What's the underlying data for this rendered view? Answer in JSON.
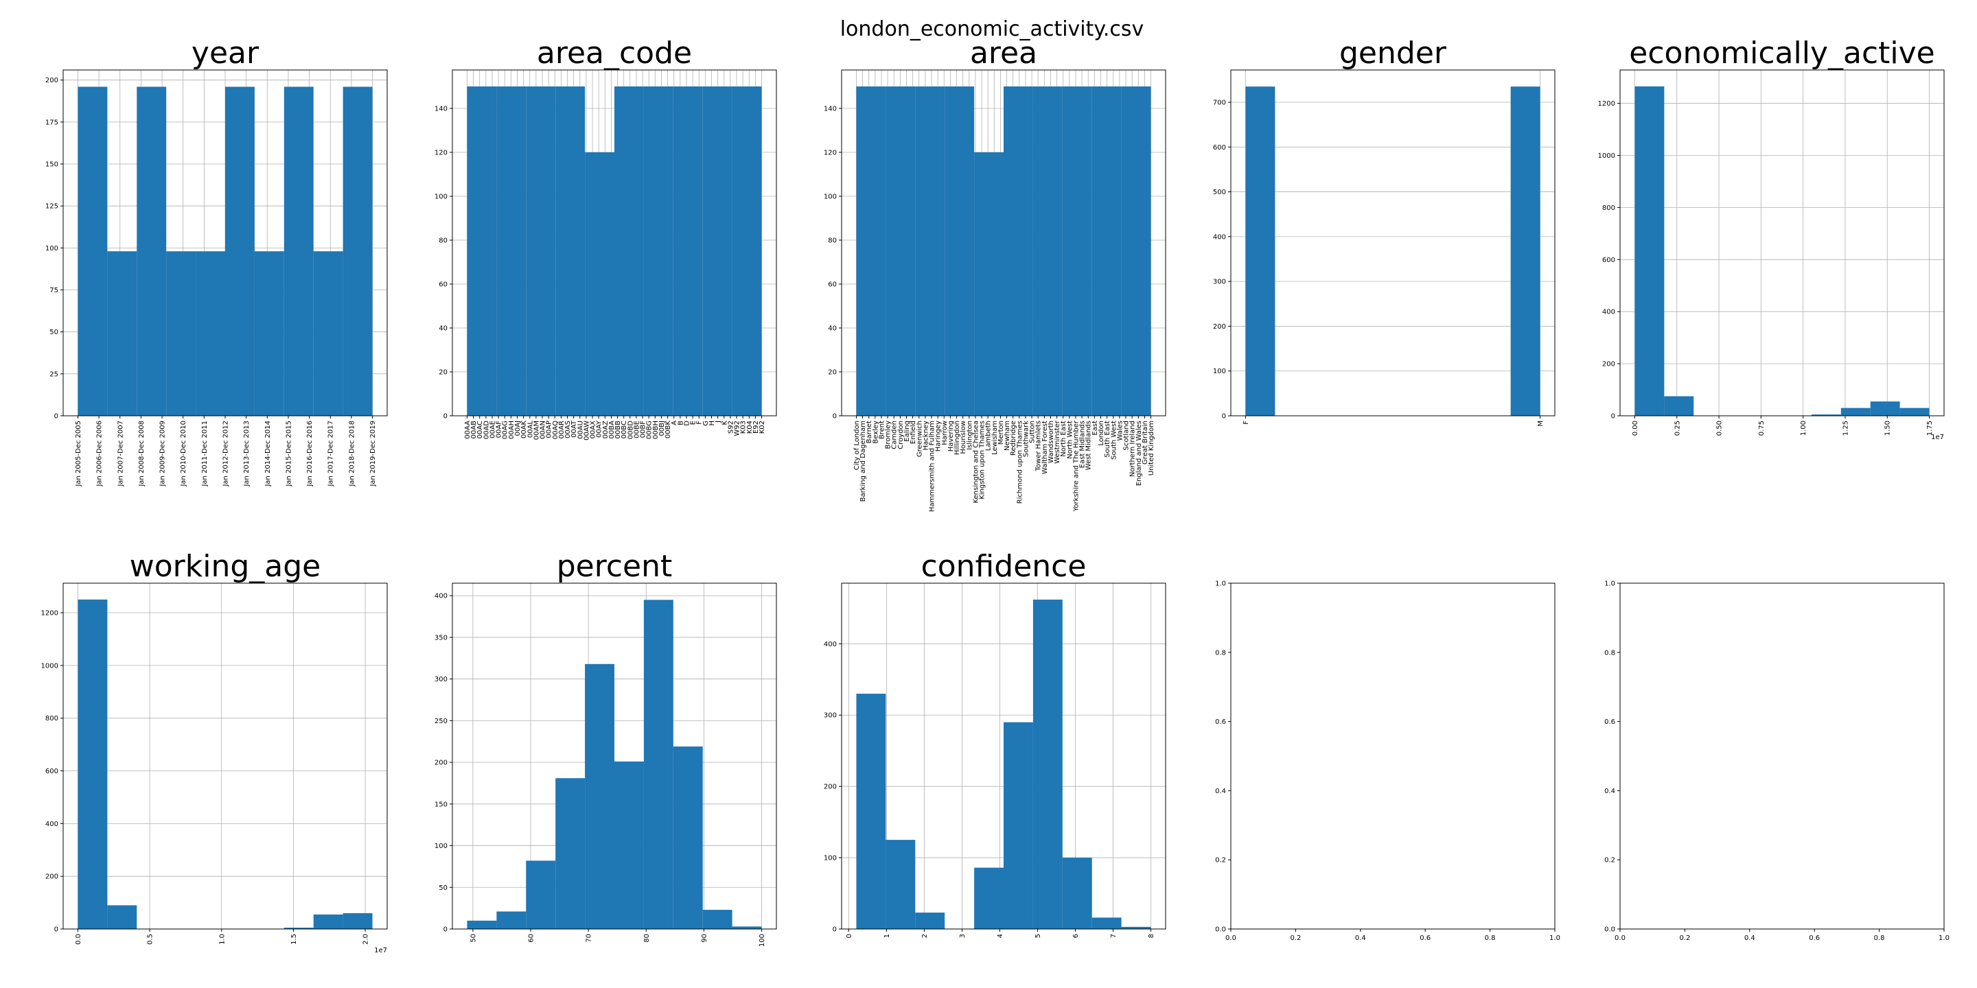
{
  "figure_title": "london_economic_activity.csv",
  "colors": {
    "bar": "#1f77b4",
    "grid": "#b0b0b0",
    "axes": "#000000"
  },
  "chart_data": [
    {
      "type": "bar",
      "title": "year",
      "grid": true,
      "categories": [
        "Jan 2005-Dec 2005",
        "Jan 2006-Dec 2006",
        "Jan 2007-Dec 2007",
        "Jan 2008-Dec 2008",
        "Jan 2009-Dec 2009",
        "Jan 2010-Dec 2010",
        "Jan 2011-Dec 2011",
        "Jan 2012-Dec 2012",
        "Jan 2013-Dec 2013",
        "Jan 2014-Dec 2014",
        "Jan 2015-Dec 2015",
        "Jan 2016-Dec 2016",
        "Jan 2017-Dec 2017",
        "Jan 2018-Dec 2018",
        "Jan 2019-Dec 2019"
      ],
      "bins": [
        {
          "x0": 0,
          "x1": 1.4,
          "count": 196
        },
        {
          "x0": 1.4,
          "x1": 2.8,
          "count": 98
        },
        {
          "x0": 2.8,
          "x1": 4.2,
          "count": 196
        },
        {
          "x0": 4.2,
          "x1": 5.6,
          "count": 98
        },
        {
          "x0": 5.6,
          "x1": 7.0,
          "count": 98
        },
        {
          "x0": 7.0,
          "x1": 8.4,
          "count": 196
        },
        {
          "x0": 8.4,
          "x1": 9.8,
          "count": 98
        },
        {
          "x0": 9.8,
          "x1": 11.2,
          "count": 196
        },
        {
          "x0": 11.2,
          "x1": 12.6,
          "count": 98
        },
        {
          "x0": 12.6,
          "x1": 14.0,
          "count": 196
        }
      ],
      "xlim": [
        -0.7,
        14.7
      ],
      "ylim": [
        0,
        206
      ],
      "yticks": [
        0,
        25,
        50,
        75,
        100,
        125,
        150,
        175,
        200
      ],
      "xtick_positions": [
        0,
        1,
        2,
        3,
        4,
        5,
        6,
        7,
        8,
        9,
        10,
        11,
        12,
        13,
        14
      ],
      "xtick_rotation": 90
    },
    {
      "type": "bar",
      "title": "area_code",
      "grid": true,
      "categories": [
        "00AA",
        "00AB",
        "00AC",
        "00AD",
        "00AE",
        "00AF",
        "00AG",
        "00AH",
        "00AJ",
        "00AK",
        "00AL",
        "00AM",
        "00AN",
        "00AP",
        "00AQ",
        "00AR",
        "00AS",
        "00AT",
        "00AU",
        "00AW",
        "00AX",
        "00AY",
        "00AZ",
        "00BA",
        "00BB",
        "00BC",
        "00BD",
        "00BE",
        "00BF",
        "00BG",
        "00BH",
        "00BJ",
        "00BK",
        "A",
        "B",
        "D",
        "E",
        "F",
        "G",
        "H",
        "J",
        "K",
        "S92",
        "W92",
        "K03",
        "K04",
        "E92",
        "K02"
      ],
      "bins": [
        {
          "x0": 0,
          "x1": 4.7,
          "count": 150
        },
        {
          "x0": 4.7,
          "x1": 9.4,
          "count": 150
        },
        {
          "x0": 9.4,
          "x1": 14.1,
          "count": 150
        },
        {
          "x0": 14.1,
          "x1": 18.8,
          "count": 150
        },
        {
          "x0": 18.8,
          "x1": 23.5,
          "count": 120
        },
        {
          "x0": 23.5,
          "x1": 28.2,
          "count": 150
        },
        {
          "x0": 28.2,
          "x1": 32.9,
          "count": 150
        },
        {
          "x0": 32.9,
          "x1": 37.6,
          "count": 150
        },
        {
          "x0": 37.6,
          "x1": 42.3,
          "count": 150
        },
        {
          "x0": 42.3,
          "x1": 47.0,
          "count": 150
        }
      ],
      "xlim": [
        -2.35,
        49.35
      ],
      "ylim": [
        0,
        157.5
      ],
      "yticks": [
        0,
        20,
        40,
        60,
        80,
        100,
        120,
        140
      ],
      "xtick_positions": [
        0,
        1,
        2,
        3,
        4,
        5,
        6,
        7,
        8,
        9,
        10,
        11,
        12,
        13,
        14,
        15,
        16,
        17,
        18,
        19,
        20,
        21,
        22,
        23,
        24,
        25,
        26,
        27,
        28,
        29,
        30,
        31,
        32,
        33,
        34,
        35,
        36,
        37,
        38,
        39,
        40,
        41,
        42,
        43,
        44,
        45,
        46,
        47
      ],
      "xtick_rotation": 90
    },
    {
      "type": "bar",
      "title": "area",
      "grid": true,
      "categories": [
        "City of London",
        "Barking and Dagenham",
        "Barnet",
        "Bexley",
        "Brent",
        "Bromley",
        "Camden",
        "Croydon",
        "Ealing",
        "Enfield",
        "Greenwich",
        "Hackney",
        "Hammersmith and Fulham",
        "Haringey",
        "Harrow",
        "Havering",
        "Hillingdon",
        "Hounslow",
        "Islington",
        "Kensington and Chelsea",
        "Kingston upon Thames",
        "Lambeth",
        "Lewisham",
        "Merton",
        "Newham",
        "Redbridge",
        "Richmond upon Thames",
        "Southwark",
        "Sutton",
        "Tower Hamlets",
        "Waltham Forest",
        "Wandsworth",
        "Westminster",
        "North East",
        "North West",
        "Yorkshire and The Humber",
        "East Midlands",
        "West Midlands",
        "East",
        "London",
        "South East",
        "South West",
        "Wales",
        "Scotland",
        "Northern Ireland",
        "England and Wales",
        "Great Britain",
        "United Kingdom"
      ],
      "bins": [
        {
          "x0": 0,
          "x1": 4.7,
          "count": 150
        },
        {
          "x0": 4.7,
          "x1": 9.4,
          "count": 150
        },
        {
          "x0": 9.4,
          "x1": 14.1,
          "count": 150
        },
        {
          "x0": 14.1,
          "x1": 18.8,
          "count": 150
        },
        {
          "x0": 18.8,
          "x1": 23.5,
          "count": 120
        },
        {
          "x0": 23.5,
          "x1": 28.2,
          "count": 150
        },
        {
          "x0": 28.2,
          "x1": 32.9,
          "count": 150
        },
        {
          "x0": 32.9,
          "x1": 37.6,
          "count": 150
        },
        {
          "x0": 37.6,
          "x1": 42.3,
          "count": 150
        },
        {
          "x0": 42.3,
          "x1": 47.0,
          "count": 150
        }
      ],
      "xlim": [
        -2.35,
        49.35
      ],
      "ylim": [
        0,
        157.5
      ],
      "yticks": [
        0,
        20,
        40,
        60,
        80,
        100,
        120,
        140
      ],
      "xtick_positions": [
        0,
        1,
        2,
        3,
        4,
        5,
        6,
        7,
        8,
        9,
        10,
        11,
        12,
        13,
        14,
        15,
        16,
        17,
        18,
        19,
        20,
        21,
        22,
        23,
        24,
        25,
        26,
        27,
        28,
        29,
        30,
        31,
        32,
        33,
        34,
        35,
        36,
        37,
        38,
        39,
        40,
        41,
        42,
        43,
        44,
        45,
        46,
        47
      ],
      "xtick_rotation": 90
    },
    {
      "type": "bar",
      "title": "gender",
      "grid": true,
      "categories": [
        "F",
        "M"
      ],
      "bins": [
        {
          "x0": 0,
          "x1": 0.1,
          "count": 735
        },
        {
          "x0": 0.1,
          "x1": 0.2,
          "count": 0
        },
        {
          "x0": 0.2,
          "x1": 0.3,
          "count": 0
        },
        {
          "x0": 0.3,
          "x1": 0.4,
          "count": 0
        },
        {
          "x0": 0.4,
          "x1": 0.5,
          "count": 0
        },
        {
          "x0": 0.5,
          "x1": 0.6,
          "count": 0
        },
        {
          "x0": 0.6,
          "x1": 0.7,
          "count": 0
        },
        {
          "x0": 0.7,
          "x1": 0.8,
          "count": 0
        },
        {
          "x0": 0.8,
          "x1": 0.9,
          "count": 0
        },
        {
          "x0": 0.9,
          "x1": 1.0,
          "count": 735
        }
      ],
      "xlim": [
        -0.05,
        1.05
      ],
      "ylim": [
        0,
        772
      ],
      "yticks": [
        0,
        100,
        200,
        300,
        400,
        500,
        600,
        700
      ],
      "xtick_positions": [
        0,
        1
      ],
      "xtick_rotation": 90
    },
    {
      "type": "bar",
      "title": "economically_active",
      "grid": true,
      "bins": [
        {
          "x0": 0.0,
          "x1": 0.175,
          "count": 1265
        },
        {
          "x0": 0.175,
          "x1": 0.35,
          "count": 75
        },
        {
          "x0": 0.35,
          "x1": 0.525,
          "count": 0
        },
        {
          "x0": 0.525,
          "x1": 0.7,
          "count": 0
        },
        {
          "x0": 0.7,
          "x1": 0.875,
          "count": 0
        },
        {
          "x0": 0.875,
          "x1": 1.05,
          "count": 0
        },
        {
          "x0": 1.05,
          "x1": 1.225,
          "count": 5
        },
        {
          "x0": 1.225,
          "x1": 1.4,
          "count": 30
        },
        {
          "x0": 1.4,
          "x1": 1.575,
          "count": 55
        },
        {
          "x0": 1.575,
          "x1": 1.75,
          "count": 30
        }
      ],
      "xlim": [
        -0.0875,
        1.8375
      ],
      "ylim": [
        0,
        1328
      ],
      "yticks": [
        0,
        200,
        400,
        600,
        800,
        1000,
        1200
      ],
      "xticks": [
        0.0,
        0.25,
        0.5,
        0.75,
        1.0,
        1.25,
        1.5,
        1.75
      ],
      "xtick_labels": [
        "0.00",
        "0.25",
        "0.50",
        "0.75",
        "1.00",
        "1.25",
        "1.50",
        "1.75"
      ],
      "xtick_rotation": 90,
      "offset_text": "1e7"
    },
    {
      "type": "bar",
      "title": "working_age",
      "grid": true,
      "bins": [
        {
          "x0": 0.0,
          "x1": 0.205,
          "count": 1250
        },
        {
          "x0": 0.205,
          "x1": 0.41,
          "count": 90
        },
        {
          "x0": 0.41,
          "x1": 0.615,
          "count": 0
        },
        {
          "x0": 0.615,
          "x1": 0.82,
          "count": 0
        },
        {
          "x0": 0.82,
          "x1": 1.025,
          "count": 0
        },
        {
          "x0": 1.025,
          "x1": 1.23,
          "count": 0
        },
        {
          "x0": 1.23,
          "x1": 1.435,
          "count": 0
        },
        {
          "x0": 1.435,
          "x1": 1.64,
          "count": 5
        },
        {
          "x0": 1.64,
          "x1": 1.845,
          "count": 55
        },
        {
          "x0": 1.845,
          "x1": 2.05,
          "count": 60
        }
      ],
      "xlim": [
        -0.1025,
        2.1525
      ],
      "ylim": [
        0,
        1312
      ],
      "yticks": [
        0,
        200,
        400,
        600,
        800,
        1000,
        1200
      ],
      "xticks": [
        0.0,
        0.5,
        1.0,
        1.5,
        2.0
      ],
      "xtick_labels": [
        "0.0",
        "0.5",
        "1.0",
        "1.5",
        "2.0"
      ],
      "xtick_rotation": 90,
      "offset_text": "1e7"
    },
    {
      "type": "bar",
      "title": "percent",
      "grid": true,
      "bins": [
        {
          "x0": 49,
          "x1": 54.1,
          "count": 10
        },
        {
          "x0": 54.1,
          "x1": 59.2,
          "count": 21
        },
        {
          "x0": 59.2,
          "x1": 64.3,
          "count": 82
        },
        {
          "x0": 64.3,
          "x1": 69.4,
          "count": 181
        },
        {
          "x0": 69.4,
          "x1": 74.5,
          "count": 318
        },
        {
          "x0": 74.5,
          "x1": 79.6,
          "count": 201
        },
        {
          "x0": 79.6,
          "x1": 84.7,
          "count": 395
        },
        {
          "x0": 84.7,
          "x1": 89.8,
          "count": 219
        },
        {
          "x0": 89.8,
          "x1": 94.9,
          "count": 23
        },
        {
          "x0": 94.9,
          "x1": 100,
          "count": 3
        }
      ],
      "xlim": [
        46.45,
        102.55
      ],
      "ylim": [
        0,
        415
      ],
      "yticks": [
        0,
        50,
        100,
        150,
        200,
        250,
        300,
        350,
        400
      ],
      "xticks": [
        50,
        60,
        70,
        80,
        90,
        100
      ],
      "xtick_labels": [
        "50",
        "60",
        "70",
        "80",
        "90",
        "100"
      ],
      "xtick_rotation": 90
    },
    {
      "type": "bar",
      "title": "confidence",
      "grid": true,
      "bins": [
        {
          "x0": 0.2,
          "x1": 0.98,
          "count": 330
        },
        {
          "x0": 0.98,
          "x1": 1.76,
          "count": 125
        },
        {
          "x0": 1.76,
          "x1": 2.54,
          "count": 23
        },
        {
          "x0": 2.54,
          "x1": 3.32,
          "count": 0
        },
        {
          "x0": 3.32,
          "x1": 4.1,
          "count": 86
        },
        {
          "x0": 4.1,
          "x1": 4.88,
          "count": 290
        },
        {
          "x0": 4.88,
          "x1": 5.66,
          "count": 462
        },
        {
          "x0": 5.66,
          "x1": 6.44,
          "count": 100
        },
        {
          "x0": 6.44,
          "x1": 7.22,
          "count": 16
        },
        {
          "x0": 7.22,
          "x1": 8.0,
          "count": 3
        }
      ],
      "xlim": [
        -0.19,
        8.39
      ],
      "ylim": [
        0,
        485
      ],
      "yticks": [
        0,
        100,
        200,
        300,
        400
      ],
      "xticks": [
        0,
        1,
        2,
        3,
        4,
        5,
        6,
        7,
        8
      ],
      "xtick_labels": [
        "0",
        "1",
        "2",
        "3",
        "4",
        "5",
        "6",
        "7",
        "8"
      ],
      "xtick_rotation": 90
    },
    {
      "type": "empty",
      "grid": false,
      "xlim": [
        0,
        1
      ],
      "ylim": [
        0,
        1
      ],
      "xticks": [
        0.0,
        0.2,
        0.4,
        0.6,
        0.8,
        1.0
      ],
      "xtick_labels": [
        "0.0",
        "0.2",
        "0.4",
        "0.6",
        "0.8",
        "1.0"
      ],
      "yticks": [
        0.0,
        0.2,
        0.4,
        0.6,
        0.8,
        1.0
      ],
      "ytick_labels": [
        "0.0",
        "0.2",
        "0.4",
        "0.6",
        "0.8",
        "1.0"
      ],
      "xtick_rotation": 0
    },
    {
      "type": "empty",
      "grid": false,
      "xlim": [
        0,
        1
      ],
      "ylim": [
        0,
        1
      ],
      "xticks": [
        0.0,
        0.2,
        0.4,
        0.6,
        0.8,
        1.0
      ],
      "xtick_labels": [
        "0.0",
        "0.2",
        "0.4",
        "0.6",
        "0.8",
        "1.0"
      ],
      "yticks": [
        0.0,
        0.2,
        0.4,
        0.6,
        0.8,
        1.0
      ],
      "ytick_labels": [
        "0.0",
        "0.2",
        "0.4",
        "0.6",
        "0.8",
        "1.0"
      ],
      "xtick_rotation": 0
    }
  ]
}
